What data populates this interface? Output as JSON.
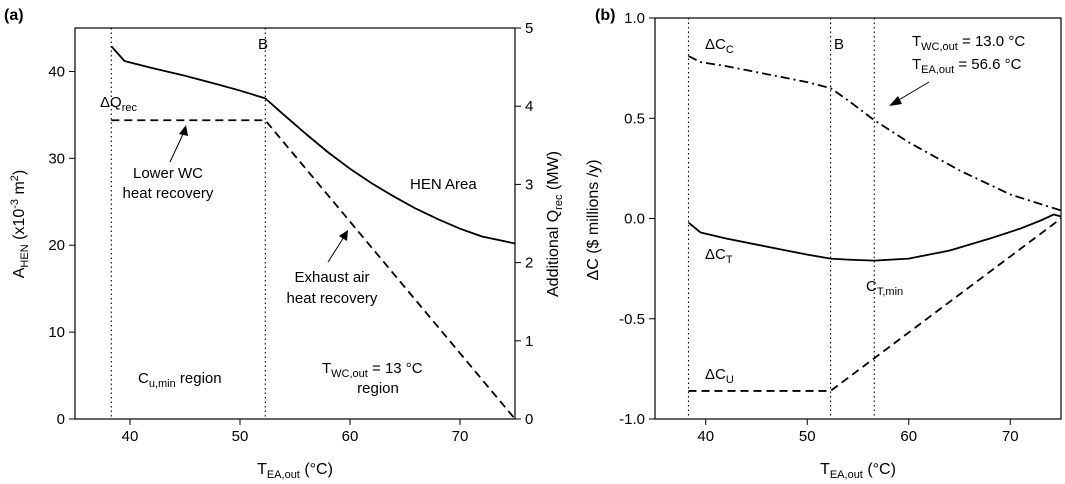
{
  "chart_data": [
    {
      "panel": "(a)",
      "type": "line",
      "xlabel": {
        "main": "T",
        "sub": "EA,out",
        "rest": " (°C)"
      },
      "ylabel": {
        "main": "A",
        "sub": "HEN",
        "rest": " (x10",
        "sup": "-3",
        "rest2": " m",
        "sup2": "2",
        "rest3": ")"
      },
      "y2label": {
        "main": "Additional Q",
        "sub": "rec",
        "rest": " (MW)"
      },
      "xlim": [
        35,
        75
      ],
      "ylim": [
        0,
        45
      ],
      "y2lim": [
        0,
        5
      ],
      "xticks": [
        "40",
        "50",
        "60",
        "70"
      ],
      "yticks": [
        "0",
        "10",
        "20",
        "30",
        "40"
      ],
      "y2ticks": [
        "0",
        "1",
        "2",
        "3",
        "4",
        "5"
      ],
      "vlines": [
        38.3,
        52.3
      ],
      "series": [
        {
          "name": "HEN Area",
          "style": "solid",
          "axis": "left",
          "x": [
            38.3,
            39.5,
            42,
            45,
            48,
            50,
            52.3,
            54,
            56,
            58,
            60,
            62,
            64,
            66,
            68,
            70,
            72,
            75
          ],
          "y": [
            42.9,
            41.2,
            40.4,
            39.5,
            38.5,
            37.8,
            36.9,
            35.0,
            32.8,
            30.7,
            28.8,
            27.1,
            25.6,
            24.2,
            23.0,
            21.9,
            21.0,
            20.2
          ]
        },
        {
          "name": "ΔQrec",
          "style": "dashed",
          "axis": "right",
          "x": [
            38.3,
            52.3,
            75
          ],
          "y": [
            3.82,
            3.82,
            0.0
          ]
        }
      ],
      "annotations": {
        "b_label": "B",
        "dq_label": {
          "main": "ΔQ",
          "sub": "rec"
        },
        "hen_area": "HEN Area",
        "lower_wc": [
          "Lower WC",
          "heat recovery"
        ],
        "exhaust": [
          "Exhaust air",
          "heat recovery"
        ],
        "cu_region": {
          "main": "C",
          "sub": "u,min",
          "rest": " region"
        },
        "twc_region": {
          "main": "T",
          "sub": "WC,out",
          "rest": " = 13 °C",
          "line2": "region"
        }
      }
    },
    {
      "panel": "(b)",
      "type": "line",
      "xlabel": {
        "main": "T",
        "sub": "EA,out",
        "rest": " (°C)"
      },
      "ylabel": "ΔC ($ millions /y)",
      "xlim": [
        35,
        75
      ],
      "ylim": [
        -1.0,
        1.0
      ],
      "xticks": [
        "40",
        "50",
        "60",
        "70"
      ],
      "yticks": [
        "-1.0",
        "-0.5",
        "0.0",
        "0.5",
        "1.0"
      ],
      "vlines": [
        38.3,
        52.3,
        56.6
      ],
      "series": [
        {
          "name": "ΔCC",
          "style": "dashdot",
          "x": [
            38.3,
            39.5,
            42,
            45,
            48,
            50,
            52.3,
            54,
            56.6,
            60,
            65,
            70,
            75
          ],
          "y": [
            0.81,
            0.78,
            0.76,
            0.73,
            0.7,
            0.68,
            0.65,
            0.59,
            0.49,
            0.38,
            0.24,
            0.12,
            0.04
          ]
        },
        {
          "name": "ΔCT",
          "style": "solid",
          "x": [
            38.3,
            39.5,
            42,
            45,
            48,
            50,
            52.3,
            54,
            56.6,
            60,
            64,
            68,
            71,
            73,
            74.3,
            75
          ],
          "y": [
            -0.02,
            -0.07,
            -0.1,
            -0.13,
            -0.16,
            -0.18,
            -0.2,
            -0.205,
            -0.21,
            -0.2,
            -0.16,
            -0.1,
            -0.05,
            -0.01,
            0.02,
            0.01
          ]
        },
        {
          "name": "ΔCU",
          "style": "dashed",
          "x": [
            38.3,
            52.3,
            75
          ],
          "y": [
            -0.86,
            -0.86,
            0.0
          ]
        }
      ],
      "annotations": {
        "b_label": "B",
        "dcc": {
          "main": "ΔC",
          "sub": "C"
        },
        "dct": {
          "main": "ΔC",
          "sub": "T"
        },
        "dcu": {
          "main": "ΔC",
          "sub": "U"
        },
        "ctmin": {
          "main": "C",
          "sub": "T,min"
        },
        "twc": {
          "main": "T",
          "sub": "WC,out",
          "rest": " = 13.0 °C"
        },
        "tea": {
          "main": "T",
          "sub": "EA,out",
          "rest": " = 56.6 °C"
        }
      }
    }
  ]
}
